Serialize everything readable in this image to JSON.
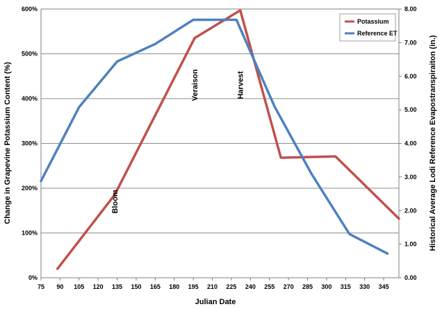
{
  "chart_data": {
    "type": "line",
    "xlabel": "Julian Date",
    "ylabel_left": "Change in Grapevine Potassium Content (%)",
    "ylabel_right": "Historical Average Lodi Reference Evapostranspiraiton (in.)",
    "xlim": [
      75,
      357
    ],
    "ylim_left": [
      0,
      600
    ],
    "ylim_right": [
      0,
      8
    ],
    "x_ticks": [
      "75",
      "90",
      "105",
      "120",
      "135",
      "150",
      "165",
      "180",
      "195",
      "210",
      "225",
      "240",
      "255",
      "270",
      "285",
      "300",
      "315",
      "330",
      "345"
    ],
    "y_left_ticks": [
      "0%",
      "100%",
      "200%",
      "300%",
      "400%",
      "500%",
      "600%"
    ],
    "y_right_ticks": [
      "0.00",
      "1.00",
      "2.00",
      "3.00",
      "4.00",
      "5.00",
      "6.00",
      "7.00",
      "8.00"
    ],
    "grid": true,
    "legend_position": "top-right",
    "series": [
      {
        "name": "Potassium",
        "axis": "left",
        "color": "#c0504d",
        "x": [
          88,
          133,
          196,
          232,
          264,
          307,
          357
        ],
        "y": [
          20,
          185,
          535,
          597,
          268,
          271,
          132
        ]
      },
      {
        "name": "Reference ET",
        "axis": "right",
        "color": "#4f81bd",
        "x": [
          75,
          105,
          135,
          165,
          195,
          229,
          259,
          288,
          318,
          348
        ],
        "y": [
          2.88,
          5.08,
          6.44,
          6.96,
          7.68,
          7.68,
          5.1,
          3.1,
          1.3,
          0.72
        ]
      }
    ],
    "annotations": [
      {
        "text": "Bloom",
        "x": 133,
        "y": 170
      },
      {
        "text": "Veraison",
        "x": 196,
        "y": 430
      },
      {
        "text": "Harvest",
        "x": 232,
        "y": 430
      }
    ]
  }
}
